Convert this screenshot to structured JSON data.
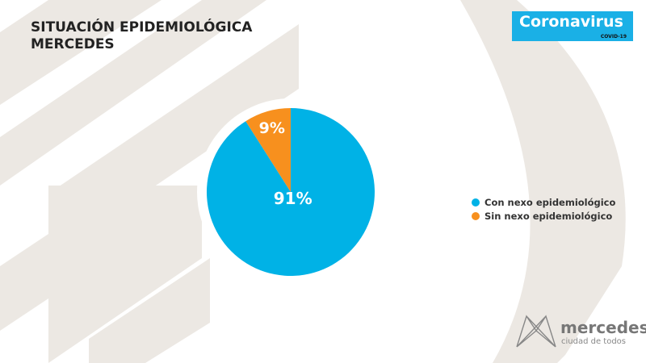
{
  "header": {
    "title_line1": "SITUACIÓN EPIDEMIOLÓGICA",
    "title_line2": "MERCEDES"
  },
  "badge": {
    "main": "Coronavirus",
    "sub": "COVID-19"
  },
  "logo": {
    "word": "mercedes",
    "tagline": "ciudad de todos"
  },
  "colors": {
    "con": "#00b2e6",
    "sin": "#f7901e",
    "background_shapes": "#ece8e3"
  },
  "chart_data": {
    "type": "pie",
    "categories": [
      "Con nexo epidemiológico",
      "Sin nexo epidemiológico"
    ],
    "values": [
      91,
      9
    ],
    "labels": [
      "91%",
      "9%"
    ],
    "legend_placement": "right"
  }
}
